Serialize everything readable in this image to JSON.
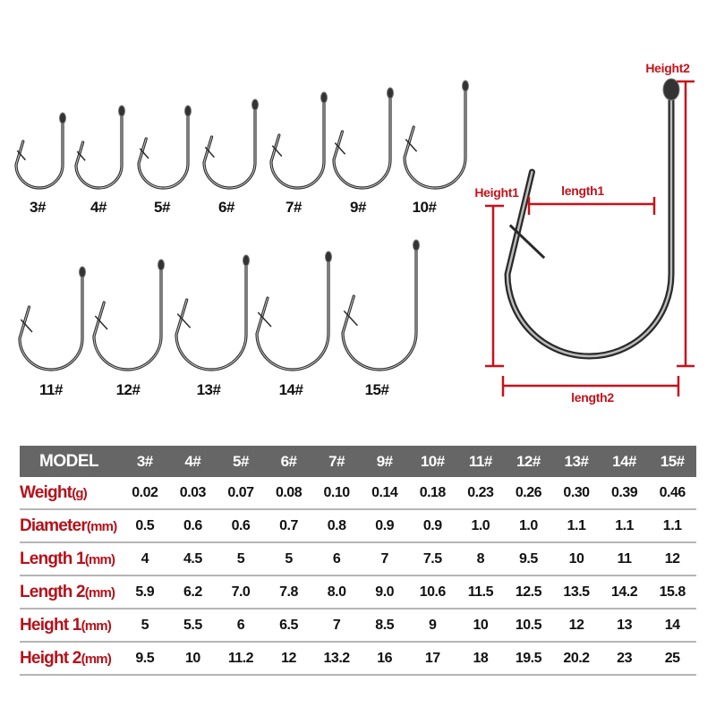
{
  "hooks_row1": [
    "3#",
    "4#",
    "5#",
    "6#",
    "7#",
    "9#",
    "10#"
  ],
  "hooks_row2": [
    "11#",
    "12#",
    "13#",
    "14#",
    "15#"
  ],
  "diagram": {
    "height2": "Height2",
    "height1": "Height1",
    "length1": "length1",
    "length2": "length2",
    "accent_color": "#c8111a"
  },
  "table": {
    "header_label": "MODEL",
    "models": [
      "3#",
      "4#",
      "5#",
      "6#",
      "7#",
      "9#",
      "10#",
      "11#",
      "12#",
      "13#",
      "14#",
      "15#"
    ],
    "rows": [
      {
        "label": "Weight",
        "unit": "(g)",
        "values": [
          "0.02",
          "0.03",
          "0.07",
          "0.08",
          "0.10",
          "0.14",
          "0.18",
          "0.23",
          "0.26",
          "0.30",
          "0.39",
          "0.46"
        ]
      },
      {
        "label": "Diameter",
        "unit": "(mm)",
        "values": [
          "0.5",
          "0.6",
          "0.6",
          "0.7",
          "0.8",
          "0.9",
          "0.9",
          "1.0",
          "1.0",
          "1.1",
          "1.1",
          "1.1"
        ]
      },
      {
        "label": "Length 1",
        "unit": "(mm)",
        "values": [
          "4",
          "4.5",
          "5",
          "5",
          "6",
          "7",
          "7.5",
          "8",
          "9.5",
          "10",
          "11",
          "12"
        ]
      },
      {
        "label": "Length 2",
        "unit": "(mm)",
        "values": [
          "5.9",
          "6.2",
          "7.0",
          "7.8",
          "8.0",
          "9.0",
          "10.6",
          "11.5",
          "12.5",
          "13.5",
          "14.2",
          "15.8"
        ]
      },
      {
        "label": "Height 1",
        "unit": "(mm)",
        "values": [
          "5",
          "5.5",
          "6",
          "6.5",
          "7",
          "8.5",
          "9",
          "10",
          "10.5",
          "12",
          "13",
          "14"
        ]
      },
      {
        "label": "Height 2",
        "unit": "(mm)",
        "values": [
          "9.5",
          "10",
          "11.2",
          "12",
          "13.2",
          "16",
          "17",
          "18",
          "19.5",
          "20.2",
          "23",
          "25"
        ]
      }
    ]
  }
}
